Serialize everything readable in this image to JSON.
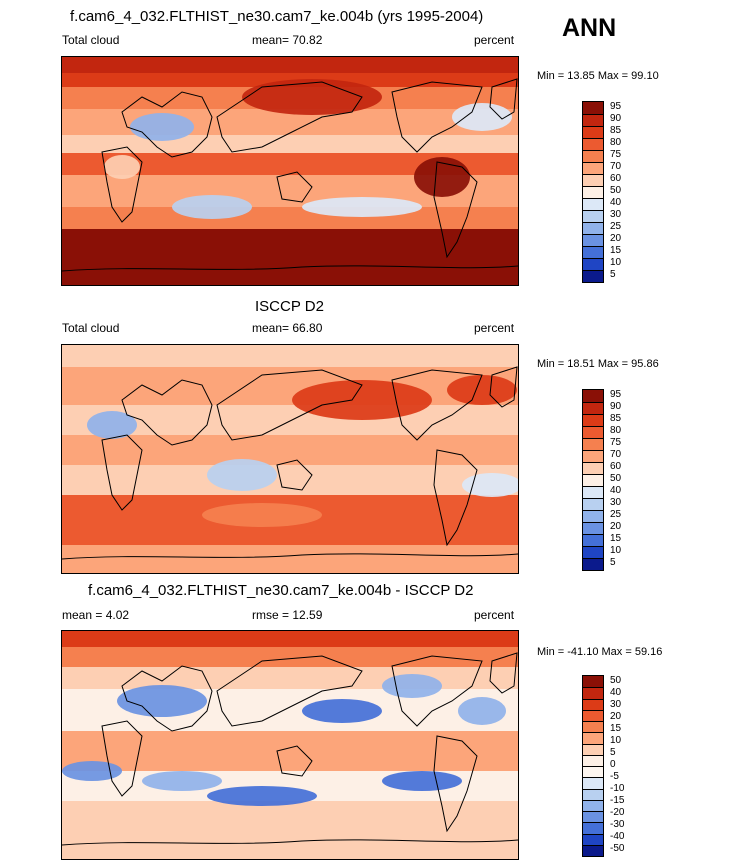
{
  "annotation": "ANN",
  "chart_data": [
    {
      "type": "heatmap",
      "title": "f.cam6_4_032.FLTHIST_ne30.cam7_ke.004b (yrs 1995-2004)",
      "left_label": "Total cloud",
      "center_label": "mean=  70.82",
      "right_label": "percent",
      "minmax": "Min =  13.85 Max =  99.10",
      "levels": [
        "95",
        "90",
        "85",
        "80",
        "75",
        "70",
        "60",
        "50",
        "40",
        "30",
        "25",
        "20",
        "15",
        "10",
        "5"
      ],
      "level_colors": [
        "#8a1006",
        "#c2260f",
        "#dc3b17",
        "#ec5a30",
        "#f5804f",
        "#fca57a",
        "#fdcfb3",
        "#fdf0e6",
        "#dce8f7",
        "#b8d0f0",
        "#90b2ea",
        "#6a92e2",
        "#4470d8",
        "#1f45c4",
        "#0b1a8c"
      ],
      "mean": 70.82,
      "min": 13.85,
      "max": 99.1,
      "units": "percent"
    },
    {
      "type": "heatmap",
      "title": "ISCCP D2",
      "left_label": "Total cloud",
      "center_label": "mean=  66.80",
      "right_label": "percent",
      "minmax": "Min =  18.51 Max =  95.86",
      "levels": [
        "95",
        "90",
        "85",
        "80",
        "75",
        "70",
        "60",
        "50",
        "40",
        "30",
        "25",
        "20",
        "15",
        "10",
        "5"
      ],
      "level_colors": [
        "#8a1006",
        "#c2260f",
        "#dc3b17",
        "#ec5a30",
        "#f5804f",
        "#fca57a",
        "#fdcfb3",
        "#fdf0e6",
        "#dce8f7",
        "#b8d0f0",
        "#90b2ea",
        "#6a92e2",
        "#4470d8",
        "#1f45c4",
        "#0b1a8c"
      ],
      "mean": 66.8,
      "min": 18.51,
      "max": 95.86,
      "units": "percent"
    },
    {
      "type": "heatmap",
      "title": "f.cam6_4_032.FLTHIST_ne30.cam7_ke.004b - ISCCP D2",
      "left_label": "mean =   4.02",
      "center_label": "rmse =  12.59",
      "right_label": "percent",
      "minmax": "Min = -41.10 Max =  59.16",
      "levels": [
        "50",
        "40",
        "30",
        "20",
        "15",
        "10",
        "5",
        "0",
        "-5",
        "-10",
        "-15",
        "-20",
        "-30",
        "-40",
        "-50"
      ],
      "level_colors": [
        "#8a1006",
        "#c2260f",
        "#dc3b17",
        "#ec5a30",
        "#f5804f",
        "#fca57a",
        "#fdcfb3",
        "#fdf0e6",
        "#fdf6f0",
        "#dce8f7",
        "#b8d0f0",
        "#90b2ea",
        "#6a92e2",
        "#4470d8",
        "#1f45c4",
        "#0b1a8c"
      ],
      "mean": 4.02,
      "rmse": 12.59,
      "min": -41.1,
      "max": 59.16,
      "units": "percent"
    }
  ]
}
